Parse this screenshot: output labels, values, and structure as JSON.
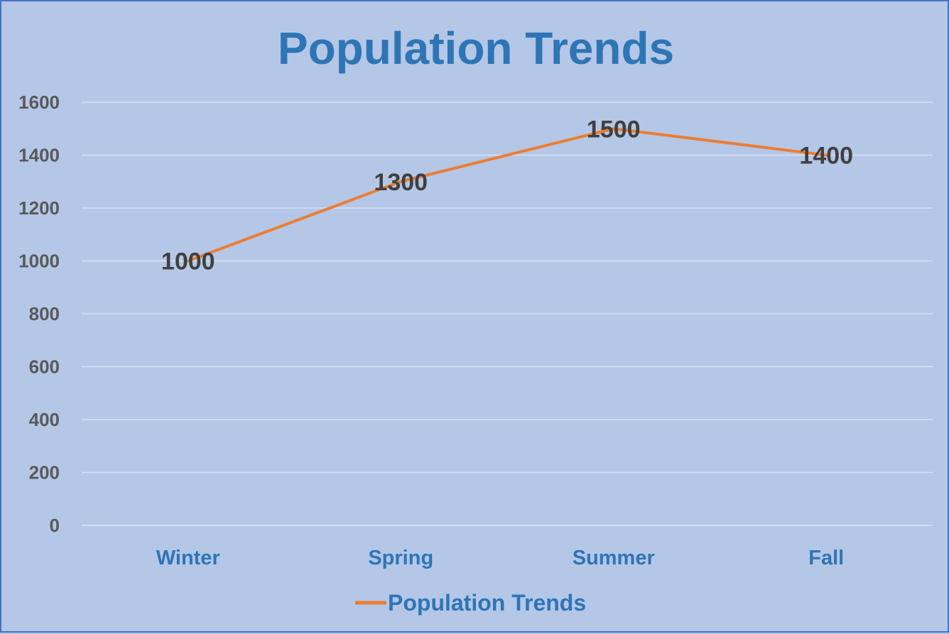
{
  "chart_data": {
    "type": "line",
    "title": "Population Trends",
    "xlabel": "",
    "ylabel": "",
    "categories": [
      "Winter",
      "Spring",
      "Summer",
      "Fall"
    ],
    "series": [
      {
        "name": "Population Trends",
        "values": [
          1000,
          1300,
          1500,
          1400
        ],
        "color": "#ed7d31"
      }
    ],
    "data_labels": [
      "1000",
      "1300",
      "1500",
      "1400"
    ],
    "ylim": [
      0,
      1600
    ],
    "yticks": [
      "0",
      "200",
      "400",
      "600",
      "800",
      "1000",
      "1200",
      "1400",
      "1600"
    ],
    "grid": true,
    "legend": "bottom",
    "colors": {
      "background": "#b4c7e7",
      "border": "#4472c4",
      "title": "#2e75b6",
      "category_labels": "#2e75b6",
      "value_axis_labels": "#595959",
      "gridlines": "#d9e1f2",
      "data_labels": "#404040"
    }
  }
}
